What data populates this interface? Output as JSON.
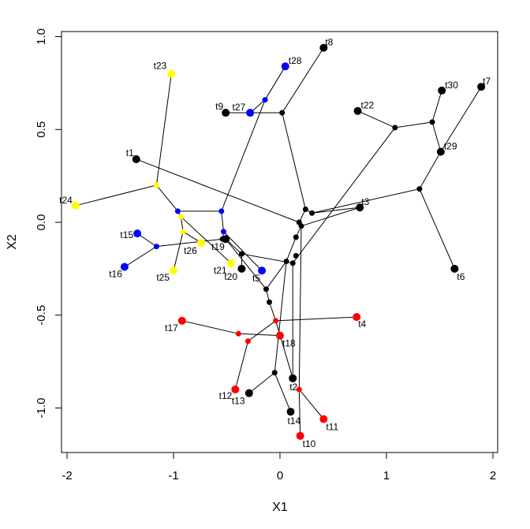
{
  "chart_data": {
    "type": "scatter",
    "title": "",
    "xlabel": "X1",
    "ylabel": "X2",
    "xlim": [
      -2.05,
      2.05
    ],
    "ylim": [
      -1.25,
      1.03
    ],
    "xticks": [
      "-2",
      "-1",
      "0",
      "1",
      "2"
    ],
    "yticks": [
      "-1.0",
      "-0.5",
      "0.0",
      "0.5",
      "1.0"
    ],
    "grid": false,
    "legend": null,
    "colors": {
      "black": "#000000",
      "blue": "#0000FF",
      "yellow": "#FFFF00",
      "red": "#FF0000"
    },
    "tips": [
      {
        "label": "t1",
        "x": -1.35,
        "y": 0.34,
        "color": "black"
      },
      {
        "label": "t2",
        "x": 0.12,
        "y": -0.84,
        "color": "black"
      },
      {
        "label": "t3",
        "x": 0.75,
        "y": 0.08,
        "color": "black"
      },
      {
        "label": "t4",
        "x": 0.72,
        "y": -0.51,
        "color": "red"
      },
      {
        "label": "t5",
        "x": -0.17,
        "y": -0.26,
        "color": "blue"
      },
      {
        "label": "t6",
        "x": 1.64,
        "y": -0.25,
        "color": "black"
      },
      {
        "label": "t7",
        "x": 1.89,
        "y": 0.73,
        "color": "black"
      },
      {
        "label": "t8",
        "x": 0.41,
        "y": 0.94,
        "color": "black"
      },
      {
        "label": "t9",
        "x": -0.51,
        "y": 0.59,
        "color": "black"
      },
      {
        "label": "t10",
        "x": 0.19,
        "y": -1.15,
        "color": "red"
      },
      {
        "label": "t11",
        "x": 0.41,
        "y": -1.06,
        "color": "red"
      },
      {
        "label": "t12",
        "x": -0.42,
        "y": -0.9,
        "color": "red"
      },
      {
        "label": "t13",
        "x": -0.29,
        "y": -0.92,
        "color": "black"
      },
      {
        "label": "t14",
        "x": 0.1,
        "y": -1.02,
        "color": "black"
      },
      {
        "label": "t15",
        "x": -1.34,
        "y": -0.06,
        "color": "blue"
      },
      {
        "label": "t16",
        "x": -1.46,
        "y": -0.24,
        "color": "blue"
      },
      {
        "label": "t17",
        "x": -0.92,
        "y": -0.53,
        "color": "red"
      },
      {
        "label": "t18",
        "x": 0.0,
        "y": -0.61,
        "color": "red"
      },
      {
        "label": "t19",
        "x": -0.51,
        "y": -0.09,
        "color": "black"
      },
      {
        "label": "t20",
        "x": -0.36,
        "y": -0.25,
        "color": "black"
      },
      {
        "label": "t21",
        "x": -0.46,
        "y": -0.22,
        "color": "yellow"
      },
      {
        "label": "t22",
        "x": 0.73,
        "y": 0.6,
        "color": "black"
      },
      {
        "label": "t23",
        "x": -1.02,
        "y": 0.8,
        "color": "yellow"
      },
      {
        "label": "t24",
        "x": -1.92,
        "y": 0.09,
        "color": "yellow"
      },
      {
        "label": "t25",
        "x": -1.0,
        "y": -0.26,
        "color": "yellow"
      },
      {
        "label": "t26",
        "x": -0.74,
        "y": -0.11,
        "color": "yellow"
      },
      {
        "label": "t27",
        "x": -0.28,
        "y": 0.59,
        "color": "blue"
      },
      {
        "label": "t28",
        "x": 0.05,
        "y": 0.84,
        "color": "blue"
      },
      {
        "label": "t29",
        "x": 1.51,
        "y": 0.38,
        "color": "black"
      },
      {
        "label": "t30",
        "x": 1.52,
        "y": 0.71,
        "color": "black"
      }
    ],
    "internal_nodes": [
      {
        "id": "n_t23",
        "x": -1.16,
        "y": 0.2,
        "color": "yellow"
      },
      {
        "id": "n_b1",
        "x": -0.96,
        "y": 0.06,
        "color": "blue"
      },
      {
        "id": "n_b2",
        "x": -0.55,
        "y": 0.06,
        "color": "blue"
      },
      {
        "id": "n_y1",
        "x": -0.93,
        "y": 0.03,
        "color": "yellow"
      },
      {
        "id": "n_y2",
        "x": -0.91,
        "y": -0.05,
        "color": "yellow"
      },
      {
        "id": "n_b3",
        "x": -0.53,
        "y": -0.05,
        "color": "blue"
      },
      {
        "id": "n_b15",
        "x": -1.16,
        "y": -0.13,
        "color": "blue"
      },
      {
        "id": "n_k19",
        "x": -0.54,
        "y": -0.09,
        "color": "black"
      },
      {
        "id": "n_k20",
        "x": -0.36,
        "y": -0.17,
        "color": "black"
      },
      {
        "id": "n_k5",
        "x": -0.13,
        "y": -0.36,
        "color": "black"
      },
      {
        "id": "n_k6",
        "x": -0.1,
        "y": -0.43,
        "color": "black"
      },
      {
        "id": "n_b28",
        "x": -0.14,
        "y": 0.66,
        "color": "blue"
      },
      {
        "id": "n_k8",
        "x": 0.02,
        "y": 0.59,
        "color": "black"
      },
      {
        "id": "n_ka",
        "x": 0.18,
        "y": 0.0,
        "color": "black"
      },
      {
        "id": "n_kb",
        "x": 0.2,
        "y": -0.02,
        "color": "black"
      },
      {
        "id": "n_kc",
        "x": 0.24,
        "y": 0.07,
        "color": "black"
      },
      {
        "id": "n_kd",
        "x": 0.3,
        "y": 0.05,
        "color": "black"
      },
      {
        "id": "n_ke",
        "x": 0.15,
        "y": -0.08,
        "color": "black"
      },
      {
        "id": "n_kf",
        "x": 0.15,
        "y": -0.18,
        "color": "black"
      },
      {
        "id": "n_kg",
        "x": 0.06,
        "y": -0.21,
        "color": "black"
      },
      {
        "id": "n_kh",
        "x": 0.12,
        "y": -0.22,
        "color": "black"
      },
      {
        "id": "n_k22",
        "x": 1.08,
        "y": 0.51,
        "color": "black"
      },
      {
        "id": "n_k30",
        "x": 1.43,
        "y": 0.54,
        "color": "black"
      },
      {
        "id": "n_k6b",
        "x": 1.31,
        "y": 0.18,
        "color": "black"
      },
      {
        "id": "n_r4",
        "x": -0.04,
        "y": -0.53,
        "color": "red"
      },
      {
        "id": "n_r17",
        "x": -0.39,
        "y": -0.6,
        "color": "red"
      },
      {
        "id": "n_r12",
        "x": -0.3,
        "y": -0.64,
        "color": "red"
      },
      {
        "id": "n_k13",
        "x": -0.05,
        "y": -0.81,
        "color": "black"
      },
      {
        "id": "n_r11",
        "x": 0.18,
        "y": -0.9,
        "color": "red"
      }
    ]
  }
}
